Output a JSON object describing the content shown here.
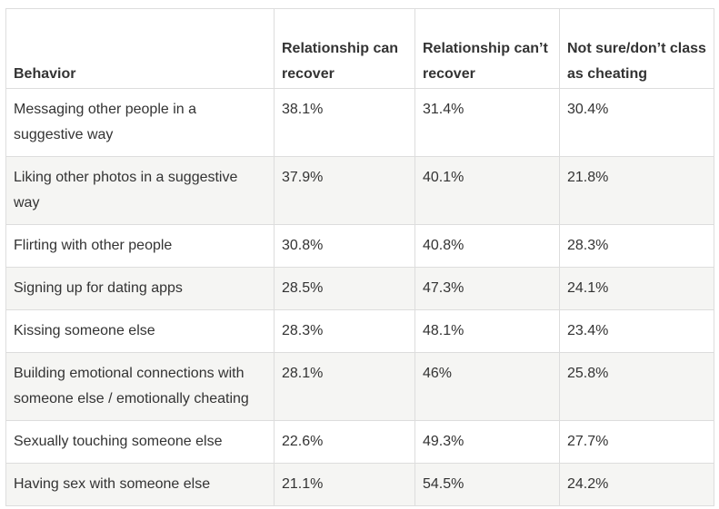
{
  "table": {
    "headers": [
      "Behavior",
      "Relationship can recover",
      "Relationship can’t recover",
      "Not sure/don’t class as cheating"
    ],
    "rows": [
      [
        "Messaging other people in a suggestive way",
        "38.1%",
        "31.4%",
        "30.4%"
      ],
      [
        "Liking other photos in a suggestive way",
        "37.9%",
        "40.1%",
        "21.8%"
      ],
      [
        "Flirting with other people",
        "30.8%",
        "40.8%",
        "28.3%"
      ],
      [
        "Signing up for dating apps",
        "28.5%",
        "47.3%",
        "24.1%"
      ],
      [
        "Kissing someone else",
        "28.3%",
        "48.1%",
        "23.4%"
      ],
      [
        "Building emotional connections with someone else / emotionally cheating",
        "28.1%",
        "46%",
        "25.8%"
      ],
      [
        "Sexually touching someone else",
        "22.6%",
        "49.3%",
        "27.7%"
      ],
      [
        "Having sex with someone else",
        "21.1%",
        "54.5%",
        "24.2%"
      ]
    ]
  }
}
